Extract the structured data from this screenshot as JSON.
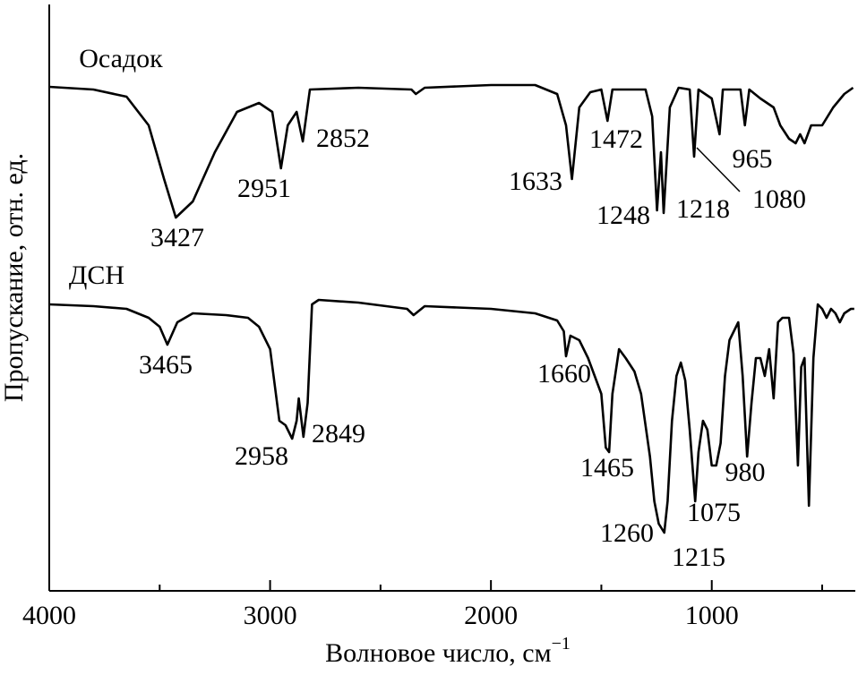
{
  "chart_data": {
    "type": "line",
    "xlabel": "Волновое число, см",
    "xlabel_sup": "−1",
    "ylabel": "Пропускание, отн. ед.",
    "xlim": [
      4000,
      350
    ],
    "ylim": [
      0,
      655
    ],
    "xticks": [
      4000,
      3000,
      2000,
      1000
    ],
    "xminor": [
      3500,
      2500,
      1500,
      500
    ],
    "color": "#000000",
    "series": [
      {
        "name": "Осадок",
        "x": [
          4000,
          3800,
          3650,
          3550,
          3480,
          3427,
          3350,
          3250,
          3150,
          3050,
          2990,
          2951,
          2920,
          2880,
          2852,
          2820,
          2600,
          2360,
          2340,
          2300,
          2000,
          1800,
          1700,
          1660,
          1633,
          1600,
          1550,
          1500,
          1472,
          1450,
          1300,
          1270,
          1248,
          1230,
          1218,
          1190,
          1150,
          1100,
          1080,
          1060,
          1030,
          1000,
          965,
          950,
          900,
          870,
          850,
          830,
          780,
          720,
          690,
          650,
          620,
          600,
          580,
          550,
          500,
          450,
          400,
          360
        ],
        "values": [
          563,
          560,
          552,
          520,
          460,
          417,
          435,
          490,
          535,
          545,
          535,
          472,
          520,
          535,
          502,
          560,
          562,
          560,
          555,
          562,
          565,
          565,
          555,
          520,
          460,
          540,
          557,
          560,
          525,
          560,
          560,
          530,
          425,
          490,
          422,
          540,
          562,
          560,
          485,
          560,
          555,
          550,
          510,
          560,
          560,
          560,
          520,
          560,
          550,
          540,
          520,
          505,
          500,
          510,
          500,
          520,
          520,
          540,
          555,
          562
        ],
        "peaks": [
          3427,
          2951,
          2852,
          1633,
          1472,
          1248,
          1218,
          1080,
          965
        ]
      },
      {
        "name": "ДСН",
        "x": [
          4000,
          3800,
          3650,
          3550,
          3500,
          3465,
          3420,
          3350,
          3200,
          3100,
          3050,
          3000,
          2958,
          2930,
          2900,
          2880,
          2870,
          2849,
          2830,
          2810,
          2780,
          2600,
          2380,
          2350,
          2300,
          2000,
          1800,
          1700,
          1670,
          1660,
          1640,
          1600,
          1560,
          1500,
          1480,
          1465,
          1450,
          1420,
          1390,
          1350,
          1320,
          1280,
          1260,
          1240,
          1215,
          1200,
          1180,
          1160,
          1140,
          1120,
          1100,
          1075,
          1060,
          1040,
          1020,
          1000,
          980,
          960,
          940,
          920,
          900,
          880,
          860,
          840,
          820,
          800,
          780,
          760,
          740,
          720,
          700,
          680,
          650,
          630,
          610,
          595,
          580,
          560,
          540,
          520,
          500,
          480,
          460,
          440,
          420,
          400,
          370,
          355
        ],
        "values": [
          320,
          318,
          315,
          305,
          295,
          275,
          300,
          310,
          308,
          305,
          295,
          270,
          190,
          185,
          170,
          190,
          215,
          172,
          210,
          320,
          325,
          322,
          315,
          308,
          318,
          315,
          310,
          302,
          290,
          262,
          285,
          280,
          260,
          220,
          160,
          155,
          220,
          270,
          260,
          245,
          220,
          150,
          100,
          75,
          65,
          100,
          190,
          240,
          255,
          235,
          180,
          100,
          155,
          190,
          180,
          140,
          140,
          165,
          240,
          280,
          290,
          300,
          240,
          150,
          210,
          260,
          260,
          240,
          270,
          215,
          300,
          305,
          305,
          265,
          140,
          250,
          260,
          95,
          260,
          320,
          315,
          305,
          315,
          310,
          300,
          310,
          315,
          315
        ],
        "peaks": [
          3465,
          2958,
          2849,
          1660,
          1465,
          1260,
          1215,
          1075,
          980
        ]
      }
    ]
  }
}
